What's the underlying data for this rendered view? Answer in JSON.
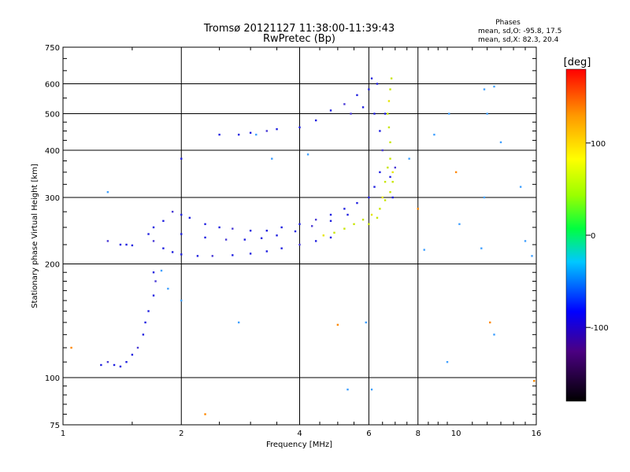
{
  "chart_data": {
    "type": "scatter",
    "title": "Tromsø 20121127 11:38:00-11:39:43",
    "subtitle": "RwPretec (Bp)",
    "xlabel": "Frequency [MHz]",
    "ylabel": "Stationary phase Virtual Height [km]",
    "x_scale": "log",
    "y_scale": "log",
    "xlim": [
      1,
      16
    ],
    "ylim": [
      75,
      750
    ],
    "grid": true,
    "x_ticks": [
      1,
      2,
      4,
      6,
      8,
      10,
      16
    ],
    "x_gridlines": [
      2,
      4,
      6,
      8
    ],
    "y_ticks": [
      75,
      100,
      200,
      300,
      400,
      500,
      600,
      750
    ],
    "y_gridlines": [
      100,
      200,
      300,
      400,
      500,
      600
    ],
    "phases": {
      "title": "Phases",
      "line_o": "mean, sd,O: -95.8, 17.5",
      "line_x": "mean, sd,X:  82.3, 20.4"
    },
    "colorbar": {
      "label": "[deg]",
      "range": [
        -180,
        180
      ],
      "ticks": [
        -100,
        0,
        100
      ]
    },
    "series": [
      {
        "name": "O-mode trace (blue)",
        "points": [
          [
            1.3,
            230
          ],
          [
            1.4,
            225
          ],
          [
            1.45,
            225
          ],
          [
            1.5,
            224
          ],
          [
            1.25,
            108
          ],
          [
            1.3,
            110
          ],
          [
            1.35,
            108
          ],
          [
            1.4,
            107
          ],
          [
            1.45,
            110
          ],
          [
            1.5,
            115
          ],
          [
            1.55,
            120
          ],
          [
            1.6,
            130
          ],
          [
            1.62,
            140
          ],
          [
            1.65,
            150
          ],
          [
            1.7,
            165
          ],
          [
            1.72,
            180
          ],
          [
            1.7,
            190
          ],
          [
            1.65,
            240
          ],
          [
            1.7,
            250
          ],
          [
            1.8,
            260
          ],
          [
            1.9,
            275
          ],
          [
            2.0,
            270
          ],
          [
            2.1,
            265
          ],
          [
            2.3,
            255
          ],
          [
            2.5,
            250
          ],
          [
            2.7,
            248
          ],
          [
            3.0,
            245
          ],
          [
            3.3,
            245
          ],
          [
            3.6,
            250
          ],
          [
            4.0,
            255
          ],
          [
            4.4,
            262
          ],
          [
            4.8,
            270
          ],
          [
            5.2,
            280
          ],
          [
            5.6,
            290
          ],
          [
            6.0,
            300
          ],
          [
            1.7,
            230
          ],
          [
            1.8,
            220
          ],
          [
            1.9,
            215
          ],
          [
            2.0,
            212
          ],
          [
            2.2,
            210
          ],
          [
            2.4,
            210
          ],
          [
            2.7,
            211
          ],
          [
            3.0,
            213
          ],
          [
            3.3,
            216
          ],
          [
            3.6,
            220
          ],
          [
            4.0,
            225
          ],
          [
            4.4,
            230
          ],
          [
            4.8,
            235
          ],
          [
            2.0,
            240
          ],
          [
            2.3,
            235
          ],
          [
            2.6,
            232
          ],
          [
            2.9,
            232
          ],
          [
            3.2,
            234
          ],
          [
            3.5,
            238
          ],
          [
            3.9,
            244
          ],
          [
            4.3,
            252
          ],
          [
            4.8,
            260
          ],
          [
            5.3,
            270
          ],
          [
            6.2,
            320
          ],
          [
            6.4,
            350
          ],
          [
            6.5,
            400
          ],
          [
            6.4,
            450
          ],
          [
            6.6,
            500
          ],
          [
            6.8,
            340
          ],
          [
            6.9,
            300
          ],
          [
            7.0,
            360
          ],
          [
            2.0,
            380
          ],
          [
            2.5,
            440
          ],
          [
            2.8,
            440
          ],
          [
            3.0,
            445
          ],
          [
            3.3,
            450
          ],
          [
            3.5,
            455
          ],
          [
            4.0,
            460
          ],
          [
            4.4,
            480
          ],
          [
            4.8,
            510
          ],
          [
            5.2,
            530
          ],
          [
            5.6,
            560
          ],
          [
            6.0,
            580
          ],
          [
            6.3,
            600
          ],
          [
            6.1,
            620
          ],
          [
            5.4,
            500
          ],
          [
            5.8,
            520
          ],
          [
            6.2,
            500
          ]
        ]
      },
      {
        "name": "X-mode trace (yellow-green)",
        "points": [
          [
            4.6,
            238
          ],
          [
            4.9,
            242
          ],
          [
            5.2,
            248
          ],
          [
            5.5,
            255
          ],
          [
            5.8,
            262
          ],
          [
            6.1,
            270
          ],
          [
            6.4,
            280
          ],
          [
            6.6,
            295
          ],
          [
            6.8,
            310
          ],
          [
            6.9,
            330
          ],
          [
            6.9,
            350
          ],
          [
            6.8,
            380
          ],
          [
            6.8,
            420
          ],
          [
            6.75,
            460
          ],
          [
            6.7,
            500
          ],
          [
            6.75,
            540
          ],
          [
            6.8,
            580
          ],
          [
            6.85,
            620
          ],
          [
            6.0,
            255
          ],
          [
            6.3,
            265
          ],
          [
            6.5,
            300
          ],
          [
            6.6,
            330
          ],
          [
            6.7,
            360
          ]
        ]
      },
      {
        "name": "scattered points",
        "points": [
          [
            1.05,
            120
          ],
          [
            1.3,
            310
          ],
          [
            1.78,
            192
          ],
          [
            1.85,
            172
          ],
          [
            2.0,
            160
          ],
          [
            2.3,
            80
          ],
          [
            2.8,
            140
          ],
          [
            3.1,
            440
          ],
          [
            3.4,
            380
          ],
          [
            4.2,
            390
          ],
          [
            5.0,
            138
          ],
          [
            5.3,
            93
          ],
          [
            5.9,
            140
          ],
          [
            6.1,
            93
          ],
          [
            7.6,
            380
          ],
          [
            8.0,
            280
          ],
          [
            8.3,
            218
          ],
          [
            8.8,
            440
          ],
          [
            9.5,
            110
          ],
          [
            9.6,
            500
          ],
          [
            10.0,
            350
          ],
          [
            10.2,
            255
          ],
          [
            11.6,
            220
          ],
          [
            11.8,
            300
          ],
          [
            12.0,
            500
          ],
          [
            12.2,
            140
          ],
          [
            12.5,
            590
          ],
          [
            13.0,
            420
          ],
          [
            12.5,
            130
          ],
          [
            14.6,
            320
          ],
          [
            15.8,
            98
          ],
          [
            15.6,
            210
          ],
          [
            15.0,
            230
          ],
          [
            11.8,
            580
          ]
        ]
      }
    ]
  }
}
